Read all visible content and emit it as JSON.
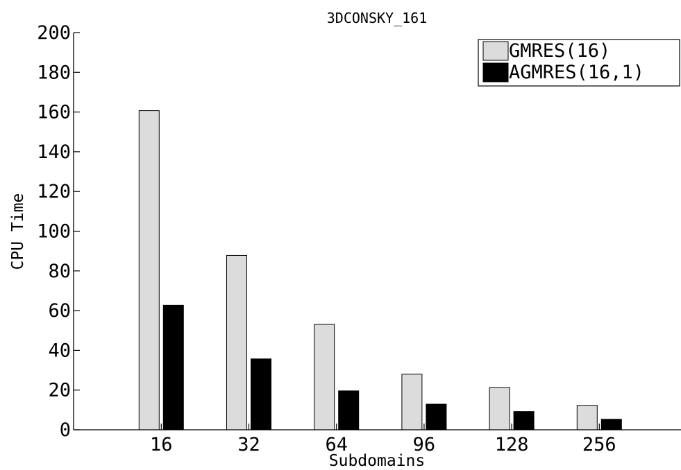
{
  "chart_data": {
    "type": "bar",
    "title": "3DCONSKY_161",
    "xlabel": "Subdomains",
    "ylabel": "CPU Time",
    "categories": [
      "16",
      "32",
      "64",
      "96",
      "128",
      "256"
    ],
    "series": [
      {
        "name": "GMRES(16)",
        "values": [
          160.7,
          87.8,
          53.1,
          28.0,
          21.3,
          12.3
        ],
        "color": "#dcdcdc"
      },
      {
        "name": "AGMRES(16,1)",
        "values": [
          62.7,
          35.7,
          19.6,
          12.9,
          9.2,
          5.3
        ],
        "color": "#000000"
      }
    ],
    "ylim": [
      0,
      200
    ],
    "yticks": [
      "0",
      "20",
      "40",
      "60",
      "80",
      "100",
      "120",
      "140",
      "160",
      "180",
      "200"
    ],
    "grid": false,
    "legend_position": "top-right"
  }
}
